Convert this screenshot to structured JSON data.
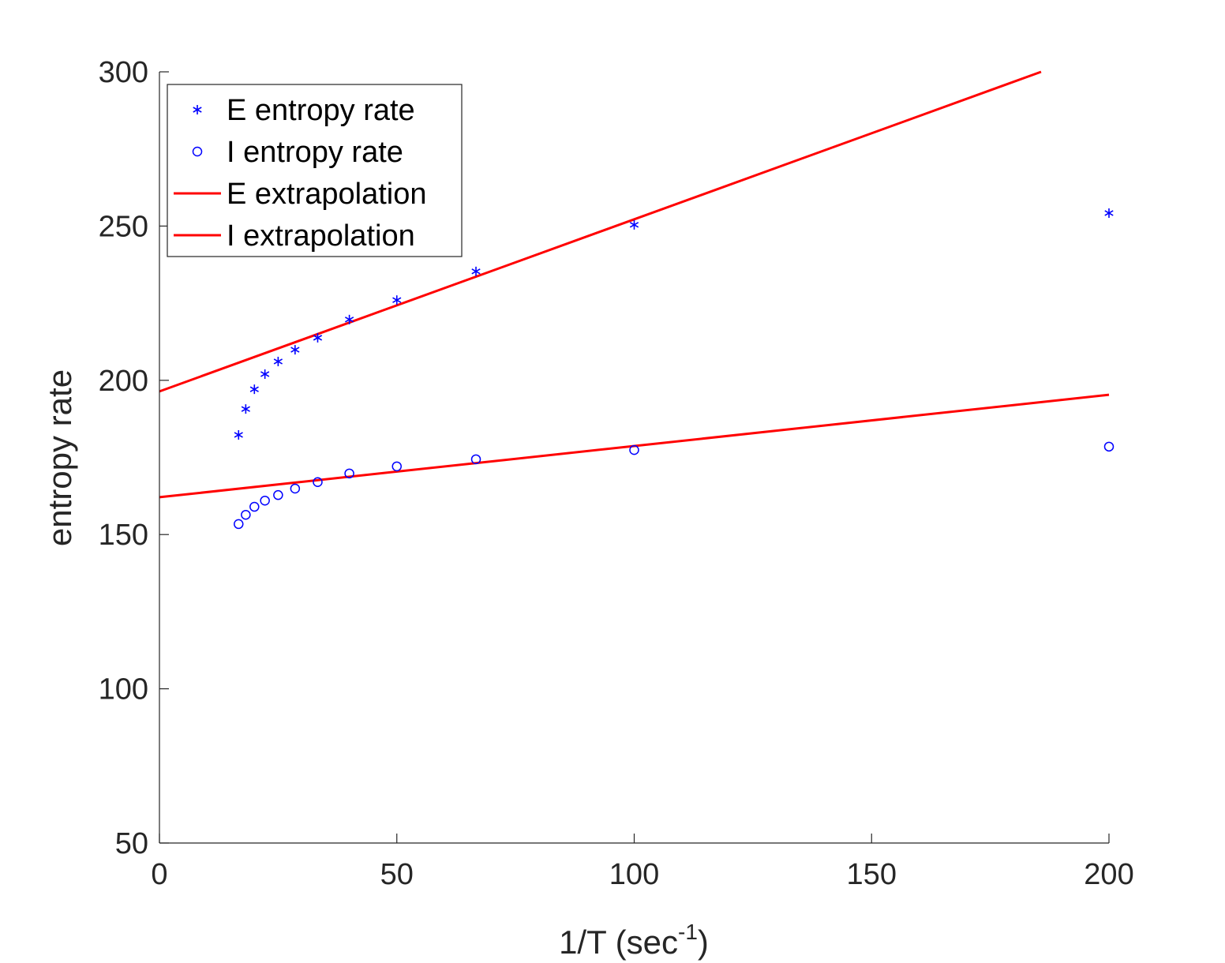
{
  "chart_data": {
    "type": "scatter",
    "title": "",
    "xlabel": "1/T (sec",
    "xlabel_sup": "-1",
    "xlabel_end": ")",
    "ylabel": "entropy rate",
    "xlim": [
      0,
      200
    ],
    "ylim": [
      50,
      300
    ],
    "xticks": [
      0,
      50,
      100,
      150,
      200
    ],
    "yticks": [
      50,
      100,
      150,
      200,
      250,
      300
    ],
    "grid": false,
    "legend_placement": "top-left",
    "colors": {
      "points": "#0000ff",
      "lines": "#ff0000",
      "axis": "#262626"
    },
    "series": [
      {
        "name": "E entropy rate",
        "kind": "scatter",
        "marker": "asterisk",
        "x": [
          16.67,
          18.18,
          20,
          22.22,
          25,
          28.57,
          33.33,
          40,
          50,
          66.67,
          100,
          200
        ],
        "y": [
          182.3,
          190.7,
          197.1,
          202.0,
          206.1,
          209.9,
          213.8,
          219.7,
          226.0,
          235.3,
          250.4,
          254.2
        ]
      },
      {
        "name": "I entropy rate",
        "kind": "scatter",
        "marker": "circle",
        "x": [
          16.67,
          18.18,
          20,
          22.22,
          25,
          28.57,
          33.33,
          40,
          50,
          66.67,
          100,
          200
        ],
        "y": [
          153.4,
          156.4,
          159.0,
          161.0,
          162.8,
          164.9,
          167.0,
          169.8,
          172.1,
          174.4,
          177.4,
          178.5
        ]
      },
      {
        "name": "E extrapolation",
        "kind": "line",
        "x": [
          0,
          185.7
        ],
        "y": [
          196.4,
          300
        ]
      },
      {
        "name": "I extrapolation",
        "kind": "line",
        "x": [
          0,
          200
        ],
        "y": [
          162.1,
          195.3
        ]
      }
    ]
  }
}
